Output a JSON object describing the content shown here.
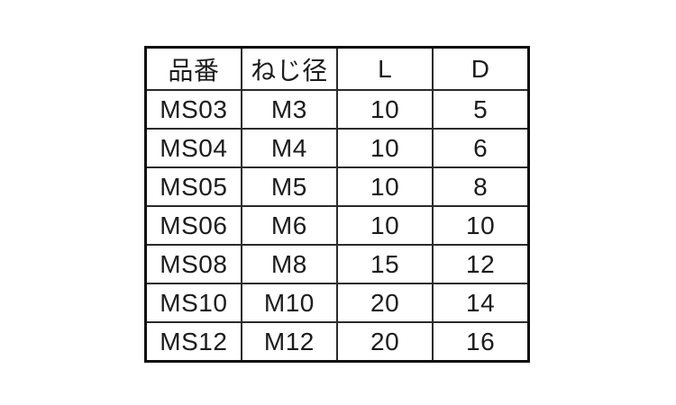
{
  "colors": {
    "background": "#ffffff",
    "outer_border": "#0f0f0f",
    "inner_border": "#2b2b2b",
    "text": "#1c1c1c"
  },
  "chart_data": {
    "type": "table",
    "columns": [
      "品番",
      "ねじ径",
      "L",
      "D"
    ],
    "rows": [
      [
        "MS03",
        "M3",
        10,
        5
      ],
      [
        "MS04",
        "M4",
        10,
        6
      ],
      [
        "MS05",
        "M5",
        10,
        8
      ],
      [
        "MS06",
        "M6",
        10,
        10
      ],
      [
        "MS08",
        "M8",
        15,
        12
      ],
      [
        "MS10",
        "M10",
        20,
        14
      ],
      [
        "MS12",
        "M12",
        20,
        16
      ]
    ]
  }
}
